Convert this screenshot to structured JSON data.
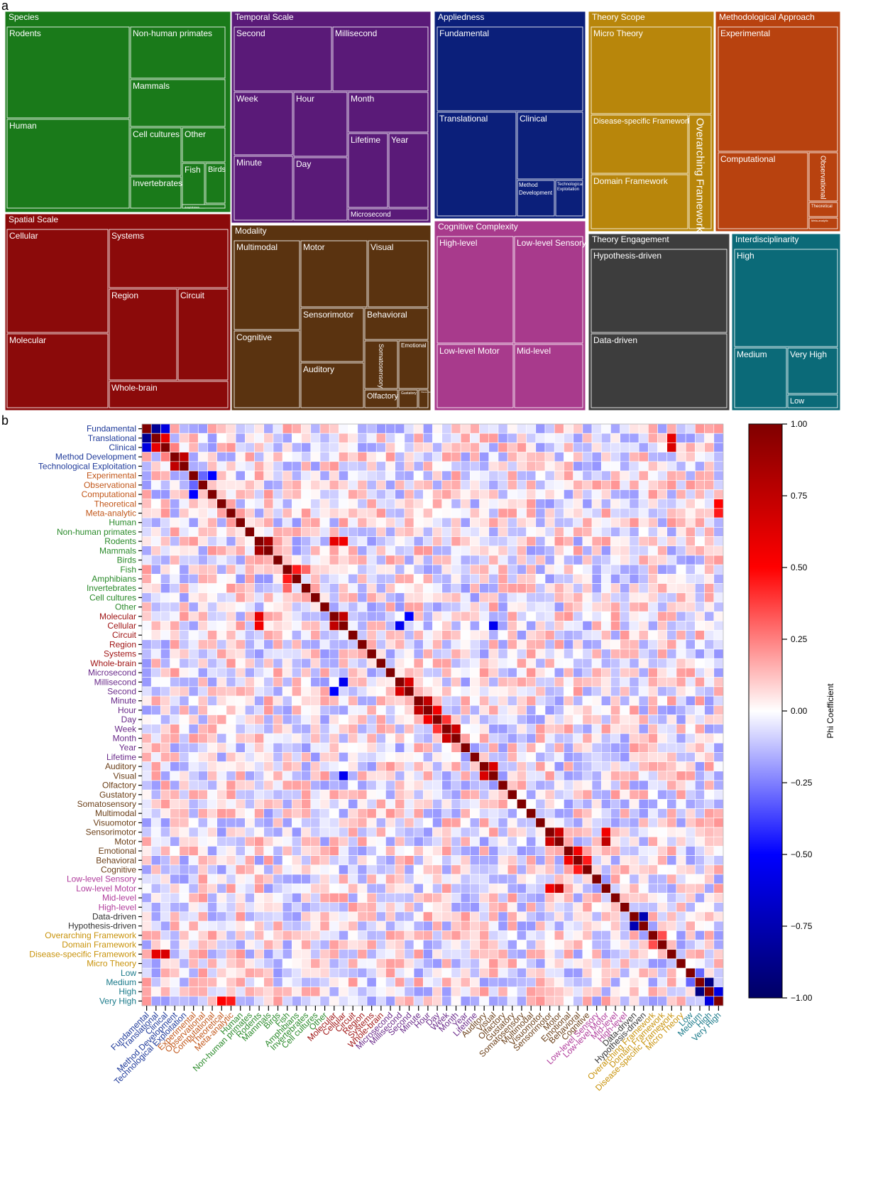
{
  "panel_labels": {
    "a": "a",
    "b": "b"
  },
  "chart_data": [
    {
      "type": "treemap",
      "panel": "a",
      "groups": [
        {
          "name": "Species",
          "color": "#1a7a1a",
          "items": [
            "Rodents",
            "Non-human primates",
            "Mammals",
            "Human",
            "Cell cultures",
            "Other",
            "Invertebrates",
            "Fish",
            "Birds",
            "Amphibians"
          ]
        },
        {
          "name": "Temporal Scale",
          "color": "#5a1a78",
          "items": [
            "Second",
            "Millisecond",
            "Week",
            "Hour",
            "Month",
            "Minute",
            "Day",
            "Lifetime",
            "Year",
            "Microsecond"
          ]
        },
        {
          "name": "Appliedness",
          "color": "#0b1f7a",
          "items": [
            "Fundamental",
            "Translational",
            "Clinical",
            "Method Development",
            "Technological Exploitation"
          ]
        },
        {
          "name": "Theory Scope",
          "color": "#b8860b",
          "items": [
            "Micro Theory",
            "Disease-specific Framework",
            "Overarching Framework",
            "Domain Framework"
          ]
        },
        {
          "name": "Methodological Approach",
          "color": "#b8420f",
          "items": [
            "Experimental",
            "Computational",
            "Observational",
            "Theoretical",
            "Meta-analytic"
          ]
        },
        {
          "name": "Spatial Scale",
          "color": "#8b0a0a",
          "items": [
            "Cellular",
            "Systems",
            "Region",
            "Circuit",
            "Molecular",
            "Whole-brain"
          ]
        },
        {
          "name": "Modality",
          "color": "#5a3310",
          "items": [
            "Multimodal",
            "Motor",
            "Visual",
            "Sensorimotor",
            "Behavioral",
            "Cognitive",
            "Somatosensory",
            "Emotional",
            "Auditory",
            "Olfactory",
            "Gustatory",
            "Visuomotor"
          ]
        },
        {
          "name": "Cognitive Complexity",
          "color": "#a83a8c",
          "items": [
            "High-level",
            "Low-level Sensory",
            "Low-level Motor",
            "Mid-level"
          ]
        },
        {
          "name": "Theory Engagement",
          "color": "#3d3d3d",
          "items": [
            "Hypothesis-driven",
            "Data-driven"
          ]
        },
        {
          "name": "Interdisciplinarity",
          "color": "#0b6a78",
          "items": [
            "High",
            "Medium",
            "Very High",
            "Low"
          ]
        }
      ]
    },
    {
      "type": "heatmap",
      "panel": "b",
      "colorbar_label": "Phi Coefficient",
      "colorbar_ticks": [
        "1.00",
        "0.75",
        "0.50",
        "0.25",
        "0.00",
        "−0.25",
        "−0.50",
        "−0.75",
        "−1.00"
      ],
      "colorbar_values": [
        1,
        0.75,
        0.5,
        0.25,
        0,
        -0.25,
        -0.5,
        -0.75,
        -1
      ],
      "vmin": -1,
      "vmax": 1,
      "groups": [
        {
          "color": "#1f3a9a",
          "labels": [
            "Fundamental",
            "Translational",
            "Clinical",
            "Method Development",
            "Technological Exploitation"
          ]
        },
        {
          "color": "#c2571a",
          "labels": [
            "Experimental",
            "Observational",
            "Computational",
            "Theoretical",
            "Meta-analytic"
          ]
        },
        {
          "color": "#2a8a2a",
          "labels": [
            "Human",
            "Non-human primates",
            "Rodents",
            "Mammals",
            "Birds",
            "Fish",
            "Amphibians",
            "Invertebrates",
            "Cell cultures",
            "Other"
          ]
        },
        {
          "color": "#a01515",
          "labels": [
            "Molecular",
            "Cellular",
            "Circuit",
            "Region",
            "Systems",
            "Whole-brain"
          ]
        },
        {
          "color": "#6a2a8a",
          "labels": [
            "Microsecond",
            "Millisecond",
            "Second",
            "Minute",
            "Hour",
            "Day",
            "Week",
            "Month",
            "Year",
            "Lifetime"
          ]
        },
        {
          "color": "#6b3f18",
          "labels": [
            "Auditory",
            "Visual",
            "Olfactory",
            "Gustatory",
            "Somatosensory",
            "Multimodal",
            "Visuomotor",
            "Sensorimotor",
            "Motor",
            "Emotional",
            "Behavioral",
            "Cognitive"
          ]
        },
        {
          "color": "#b03c9c",
          "labels": [
            "Low-level Sensory",
            "Low-level Motor",
            "Mid-level",
            "High-level"
          ]
        },
        {
          "color": "#333333",
          "labels": [
            "Data-driven",
            "Hypothesis-driven"
          ]
        },
        {
          "color": "#c8920a",
          "labels": [
            "Overarching Framework",
            "Domain Framework",
            "Disease-specific Framework",
            "Micro Theory"
          ]
        },
        {
          "color": "#1a7a8a",
          "labels": [
            "Low",
            "Medium",
            "High",
            "Very High"
          ]
        }
      ],
      "strong_correlations": [
        {
          "a": "Fundamental",
          "b": "Translational",
          "value": -0.85
        },
        {
          "a": "Fundamental",
          "b": "Clinical",
          "value": -0.6
        },
        {
          "a": "Translational",
          "b": "Clinical",
          "value": 0.6
        },
        {
          "a": "Method Development",
          "b": "Technological Exploitation",
          "value": 0.75
        },
        {
          "a": "Clinical",
          "b": "Method Development",
          "value": 0.25
        },
        {
          "a": "Experimental",
          "b": "Computational",
          "value": -0.5
        },
        {
          "a": "Experimental",
          "b": "Observational",
          "value": -0.3
        },
        {
          "a": "Rodents",
          "b": "Mammals",
          "value": 0.85
        },
        {
          "a": "Fish",
          "b": "Amphibians",
          "value": 0.45
        },
        {
          "a": "Fish",
          "b": "Invertebrates",
          "value": 0.3
        },
        {
          "a": "Molecular",
          "b": "Cellular",
          "value": 0.75
        },
        {
          "a": "Molecular",
          "b": "Rodents",
          "value": 0.6
        },
        {
          "a": "Cellular",
          "b": "Rodents",
          "value": 0.55
        },
        {
          "a": "Molecular",
          "b": "Second",
          "value": -0.5
        },
        {
          "a": "Cellular",
          "b": "Millisecond",
          "value": -0.55
        },
        {
          "a": "Cellular",
          "b": "Visual",
          "value": -0.55
        },
        {
          "a": "Millisecond",
          "b": "Second",
          "value": 0.65
        },
        {
          "a": "Minute",
          "b": "Hour",
          "value": 0.75
        },
        {
          "a": "Hour",
          "b": "Day",
          "value": 0.55
        },
        {
          "a": "Week",
          "b": "Month",
          "value": 0.7
        },
        {
          "a": "Day",
          "b": "Week",
          "value": 0.4
        },
        {
          "a": "Auditory",
          "b": "Visual",
          "value": 0.65
        },
        {
          "a": "Sensorimotor",
          "b": "Motor",
          "value": 0.7
        },
        {
          "a": "Low-level Motor",
          "b": "Motor",
          "value": 0.75
        },
        {
          "a": "Low-level Motor",
          "b": "Sensorimotor",
          "value": 0.55
        },
        {
          "a": "Emotional",
          "b": "Behavioral",
          "value": 0.55
        },
        {
          "a": "Behavioral",
          "b": "Cognitive",
          "value": 0.45
        },
        {
          "a": "Data-driven",
          "b": "Hypothesis-driven",
          "value": -0.75
        },
        {
          "a": "Overarching Framework",
          "b": "Domain Framework",
          "value": 0.35
        },
        {
          "a": "Medium",
          "b": "High",
          "value": -0.9
        },
        {
          "a": "Low",
          "b": "Medium",
          "value": -0.3
        },
        {
          "a": "High",
          "b": "Very High",
          "value": -0.6
        },
        {
          "a": "Disease-specific Framework",
          "b": "Clinical",
          "value": 0.65
        },
        {
          "a": "Disease-specific Framework",
          "b": "Translational",
          "value": 0.6
        },
        {
          "a": "Theoretical",
          "b": "Very High",
          "value": 0.5
        },
        {
          "a": "Meta-analytic",
          "b": "Very High",
          "value": 0.45
        }
      ]
    }
  ]
}
